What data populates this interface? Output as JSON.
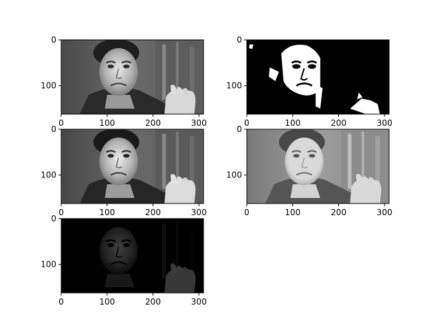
{
  "chart_data": [
    {
      "type": "image",
      "filter": "grayscale",
      "image_width": 310,
      "image_height": 162,
      "x_ticks": [
        0,
        100,
        200,
        300
      ],
      "y_ticks": [
        0,
        100
      ],
      "x_tick_labels": [
        "0",
        "100",
        "200",
        "300"
      ],
      "y_tick_labels": [
        "0",
        "100"
      ]
    },
    {
      "type": "image",
      "filter": "binary-threshold",
      "image_width": 310,
      "image_height": 162,
      "x_ticks": [
        0,
        100,
        200,
        300
      ],
      "y_ticks": [
        0,
        100
      ],
      "x_tick_labels": [
        "0",
        "100",
        "200",
        "300"
      ],
      "y_tick_labels": [
        "0",
        "100"
      ]
    },
    {
      "type": "image",
      "filter": "grayscale-enhanced",
      "image_width": 310,
      "image_height": 162,
      "x_ticks": [
        0,
        100,
        200,
        300
      ],
      "y_ticks": [
        0,
        100
      ],
      "x_tick_labels": [
        "0",
        "100",
        "200",
        "300"
      ],
      "y_tick_labels": [
        "0",
        "100"
      ]
    },
    {
      "type": "image",
      "filter": "brightened",
      "image_width": 310,
      "image_height": 162,
      "x_ticks": [
        0,
        100,
        200,
        300
      ],
      "y_ticks": [
        0,
        100
      ],
      "x_tick_labels": [
        "0",
        "100",
        "200",
        "300"
      ],
      "y_tick_labels": [
        "0",
        "100"
      ]
    },
    {
      "type": "image",
      "filter": "darkened",
      "image_width": 310,
      "image_height": 162,
      "x_ticks": [
        0,
        100,
        200,
        300
      ],
      "y_ticks": [
        0,
        100
      ],
      "x_tick_labels": [
        "0",
        "100",
        "200",
        "300"
      ],
      "y_tick_labels": [
        "0",
        "100"
      ]
    }
  ]
}
